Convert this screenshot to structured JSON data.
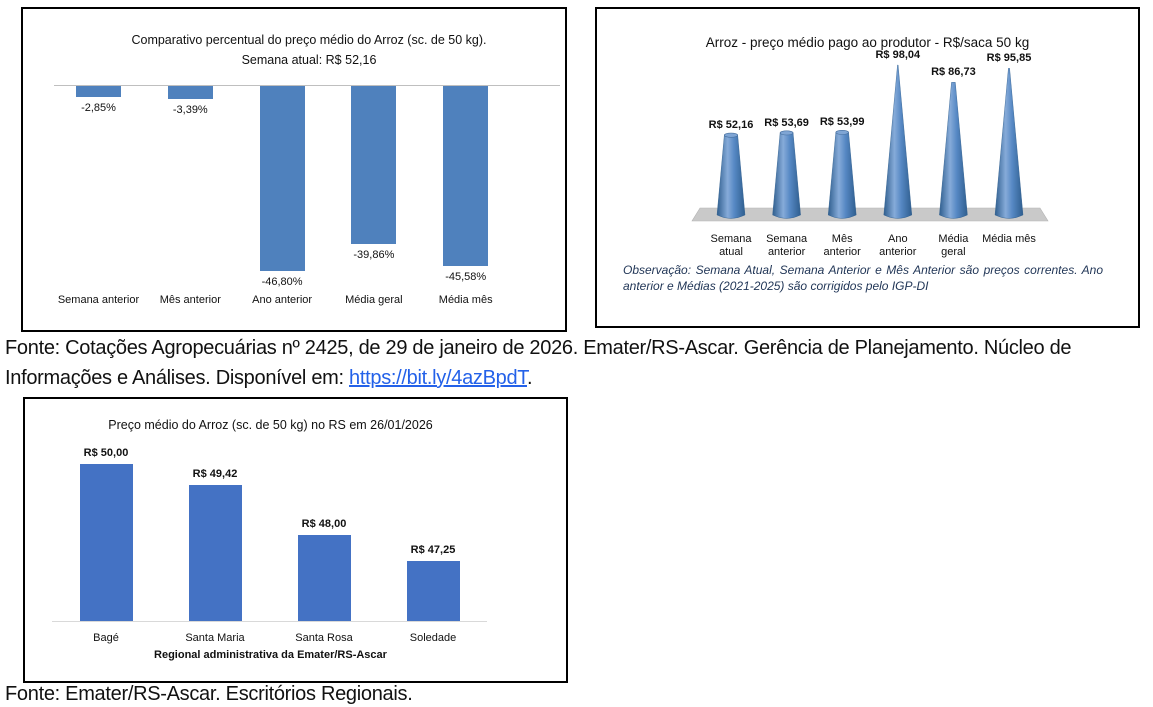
{
  "page": {
    "source_note_1": {
      "line1": "Fonte: Cotações Agropecuárias nº 2425, de 29 de janeiro de 2026. Emater/RS-Ascar. Gerência de Planejamento. Núcleo de",
      "line2_prefix": "Informações e Análises. Disponível em: ",
      "link": "https://bit.ly/4azBpdT",
      "line2_suffix": "."
    },
    "source_note_2": "Fonte: Emater/RS-Ascar. Escritórios Regionais."
  },
  "chart_data": [
    {
      "id": "percent-comparison",
      "type": "bar",
      "title_line1": "Comparativo percentual do preço médio do Arroz (sc. de 50 kg).",
      "title_line2": "Semana atual:  R$ 52,16",
      "categories": [
        "Semana anterior",
        "Mês anterior",
        "Ano anterior",
        "Média geral",
        "Média mês"
      ],
      "values": [
        -2.85,
        -3.39,
        -46.8,
        -39.86,
        -45.58
      ],
      "value_labels": [
        "-2,85%",
        "-3,39%",
        "-46,80%",
        "-39,86%",
        "-45,58%"
      ],
      "ylim": [
        -50,
        0
      ],
      "grid": "off",
      "legend": "none",
      "bar_color": "#4F81BD",
      "axis_color": "#BFBFBF"
    },
    {
      "id": "producer-price-cones",
      "type": "bar",
      "subtype": "cone-3d",
      "title": "Arroz - preço médio pago ao produtor  - R$/saca 50 kg",
      "categories": [
        "Semana\natual",
        "Semana\nanterior",
        "Mês\nanterior",
        "Ano\nanterior",
        "Média\ngeral",
        "Média mês"
      ],
      "values": [
        52.16,
        53.69,
        53.99,
        98.04,
        86.73,
        95.85
      ],
      "value_labels": [
        "R$ 52,16",
        "R$ 53,69",
        "R$ 53,99",
        "R$ 98,04",
        "R$ 86,73",
        "R$ 95,85"
      ],
      "ylim": [
        0,
        100
      ],
      "grid": "off",
      "legend": "none",
      "cone_color_dark": "#2F5E8E",
      "cone_color_light": "#86ABD9",
      "floor_color": "#C9C9C9",
      "note": "Observação: Semana Atual, Semana Anterior e Mês Anterior são preços correntes.  Ano anterior e Médias (2021-2025) são corrigidos pelo IGP-DI"
    },
    {
      "id": "regional-price",
      "type": "bar",
      "title": "Preço médio do Arroz (sc. de 50 kg) no RS em 26/01/2026",
      "categories": [
        "Bagé",
        "Santa Maria",
        "Santa Rosa",
        "Soledade"
      ],
      "values": [
        50.0,
        49.42,
        48.0,
        47.25
      ],
      "value_labels": [
        "R$ 50,00",
        "R$ 49,42",
        "R$ 48,00",
        "R$ 47,25"
      ],
      "xlabel": "Regional administrativa da Emater/RS-Ascar",
      "ylim": [
        45.56,
        50.0
      ],
      "grid": "off",
      "legend": "none",
      "bar_color": "#4472C4",
      "axis_color": "#D9D9D9"
    }
  ]
}
